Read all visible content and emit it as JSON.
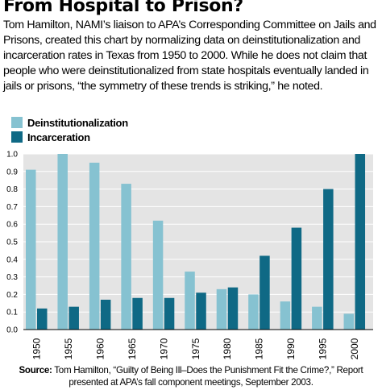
{
  "header": {
    "title": "From Hospital to Prison?",
    "intro": "Tom Hamilton, NAMI’s liaison to APA’s Corresponding Committee on Jails and Prisons, created this chart by normalizing data on deinstitutionalization and incarceration rates in Texas from 1950 to 2000. While he does not claim that people who were deinstitutionalized from state hospitals eventually landed in jails or prisons, “the symmetry of these trends is striking,” he noted."
  },
  "footer": {
    "source_label": "Source:",
    "source_text": "Tom Hamilton, “Guilty of Being Ill–Does the Punishment Fit the Crime?,” Report presented at APA’s fall component meetings, September 2003."
  },
  "chart_data": {
    "type": "bar",
    "categories": [
      "1950",
      "1955",
      "1960",
      "1965",
      "1970",
      "1975",
      "1980",
      "1985",
      "1990",
      "1995",
      "2000"
    ],
    "series": [
      {
        "name": "Deinstitutionalization",
        "color": "#86c2d1",
        "values": [
          0.91,
          1.0,
          0.95,
          0.83,
          0.62,
          0.33,
          0.23,
          0.2,
          0.16,
          0.13,
          0.09
        ]
      },
      {
        "name": "Incarceration",
        "color": "#0f6985",
        "values": [
          0.12,
          0.13,
          0.17,
          0.18,
          0.18,
          0.21,
          0.24,
          0.42,
          0.58,
          0.8,
          1.0
        ]
      }
    ],
    "yticks": [
      "0.0",
      "0.1",
      "0.2",
      "0.3",
      "0.4",
      "0.5",
      "0.6",
      "0.7",
      "0.8",
      "0.9",
      "1.0"
    ],
    "ylim": [
      0,
      1
    ],
    "grid": true,
    "legend_position": "top-left",
    "colors": {
      "panel_background": "#e4e4e4",
      "grid": "#ffffff"
    }
  }
}
